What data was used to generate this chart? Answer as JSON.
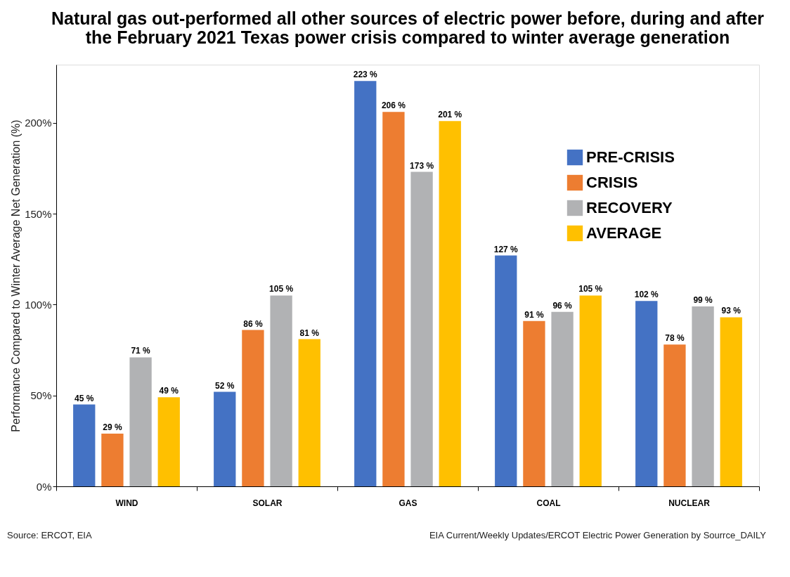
{
  "chart_data": {
    "type": "bar",
    "title": [
      "Natural gas out-performed all other sources of electric power before, during and after",
      "the February 2021 Texas power crisis compared to winter average generation"
    ],
    "ylabel": "Performance Compared to Winter Average Net Generation (%)",
    "categories": [
      "WIND",
      "SOLAR",
      "GAS",
      "COAL",
      "NUCLEAR"
    ],
    "series": [
      {
        "name": "PRE-CRISIS",
        "color": "#4472c4",
        "values": [
          45,
          52,
          223,
          127,
          102
        ],
        "value_labels": [
          "45 %",
          "52 %",
          "223 %",
          "127 %",
          "102 %"
        ]
      },
      {
        "name": "CRISIS",
        "color": "#ed7d31",
        "values": [
          29,
          86,
          206,
          91,
          78
        ],
        "value_labels": [
          "29 %",
          "86 %",
          "206 %",
          "91 %",
          "78 %"
        ]
      },
      {
        "name": "RECOVERY",
        "color": "#b1b2b4",
        "values": [
          71,
          105,
          173,
          96,
          99
        ],
        "value_labels": [
          "71 %",
          "105 %",
          "173 %",
          "96 %",
          "99 %"
        ]
      },
      {
        "name": "AVERAGE",
        "color": "#ffc000",
        "values": [
          49,
          81,
          201,
          105,
          93
        ],
        "value_labels": [
          "49 %",
          "81 %",
          "201 %",
          "105 %",
          "93 %"
        ]
      }
    ],
    "ylim": [
      0,
      232
    ],
    "yticks": [
      {
        "value": 0,
        "label": "0%"
      },
      {
        "value": 50,
        "label": "50%"
      },
      {
        "value": 100,
        "label": "100%"
      },
      {
        "value": 150,
        "label": "150%"
      },
      {
        "value": 200,
        "label": "200%"
      }
    ],
    "grid": false,
    "legend": "top right",
    "annotations": [
      "Source:  ERCOT, EIA",
      "EIA Current/Weekly Updates/ERCOT Electric Power Generation by Sourrce_DAILY"
    ]
  }
}
